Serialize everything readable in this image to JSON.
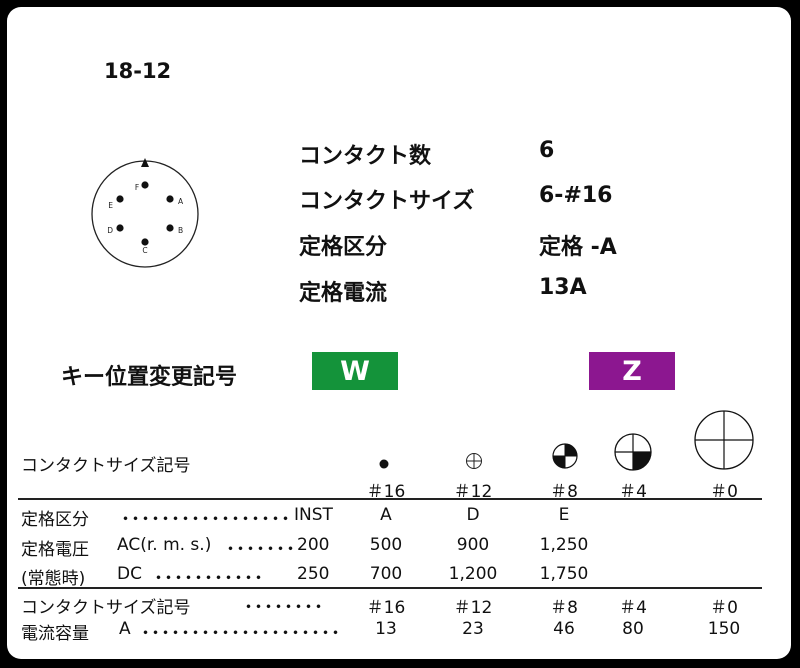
{
  "model": "18-12",
  "specs": [
    {
      "label": "コンタクト数",
      "value": "6"
    },
    {
      "label": "コンタクトサイズ",
      "value": "6-#16"
    },
    {
      "label": "定格区分",
      "value": "定格 -A"
    },
    {
      "label": "定格電流",
      "value": "13A"
    }
  ],
  "pin_layout": {
    "pins": [
      "F",
      "A",
      "B",
      "C",
      "D",
      "E"
    ]
  },
  "key_position": {
    "label": "キー位置変更記号",
    "keys": [
      {
        "code": "W",
        "color": "#14933a"
      },
      {
        "code": "Z",
        "color": "#8c1790"
      }
    ]
  },
  "table": {
    "symbol_header": "コンタクトサイズ記号",
    "sizes": [
      "＃16",
      "＃12",
      "＃8",
      "＃4",
      "＃0"
    ],
    "rows": [
      {
        "label": "定格区分",
        "dots": "・・・・・・・・・・・・・・・・・",
        "ref": "INST",
        "values": [
          "A",
          "D",
          "E",
          "",
          ""
        ]
      },
      {
        "label": "定格電圧",
        "sub": "AC(r. m. s.)",
        "dots": "・・・・・・・",
        "ref": "200",
        "values": [
          "500",
          "900",
          "1,250",
          "",
          ""
        ]
      },
      {
        "label": "(常態時)",
        "sub": "DC",
        "dots": "・・・・・・・・・・・",
        "ref": "250",
        "values": [
          "700",
          "1,200",
          "1,750",
          "",
          ""
        ]
      }
    ],
    "footer_rows": [
      {
        "label": "コンタクトサイズ記号",
        "dots": "・・・・・・・・",
        "values": [
          "＃16",
          "＃12",
          "＃8",
          "＃4",
          "＃0"
        ]
      },
      {
        "label": "電流容量",
        "sub": "A",
        "dots": "・・・・・・・・・・・・・・・・・・・・",
        "values": [
          "13",
          "23",
          "46",
          "80",
          "150"
        ]
      }
    ]
  }
}
